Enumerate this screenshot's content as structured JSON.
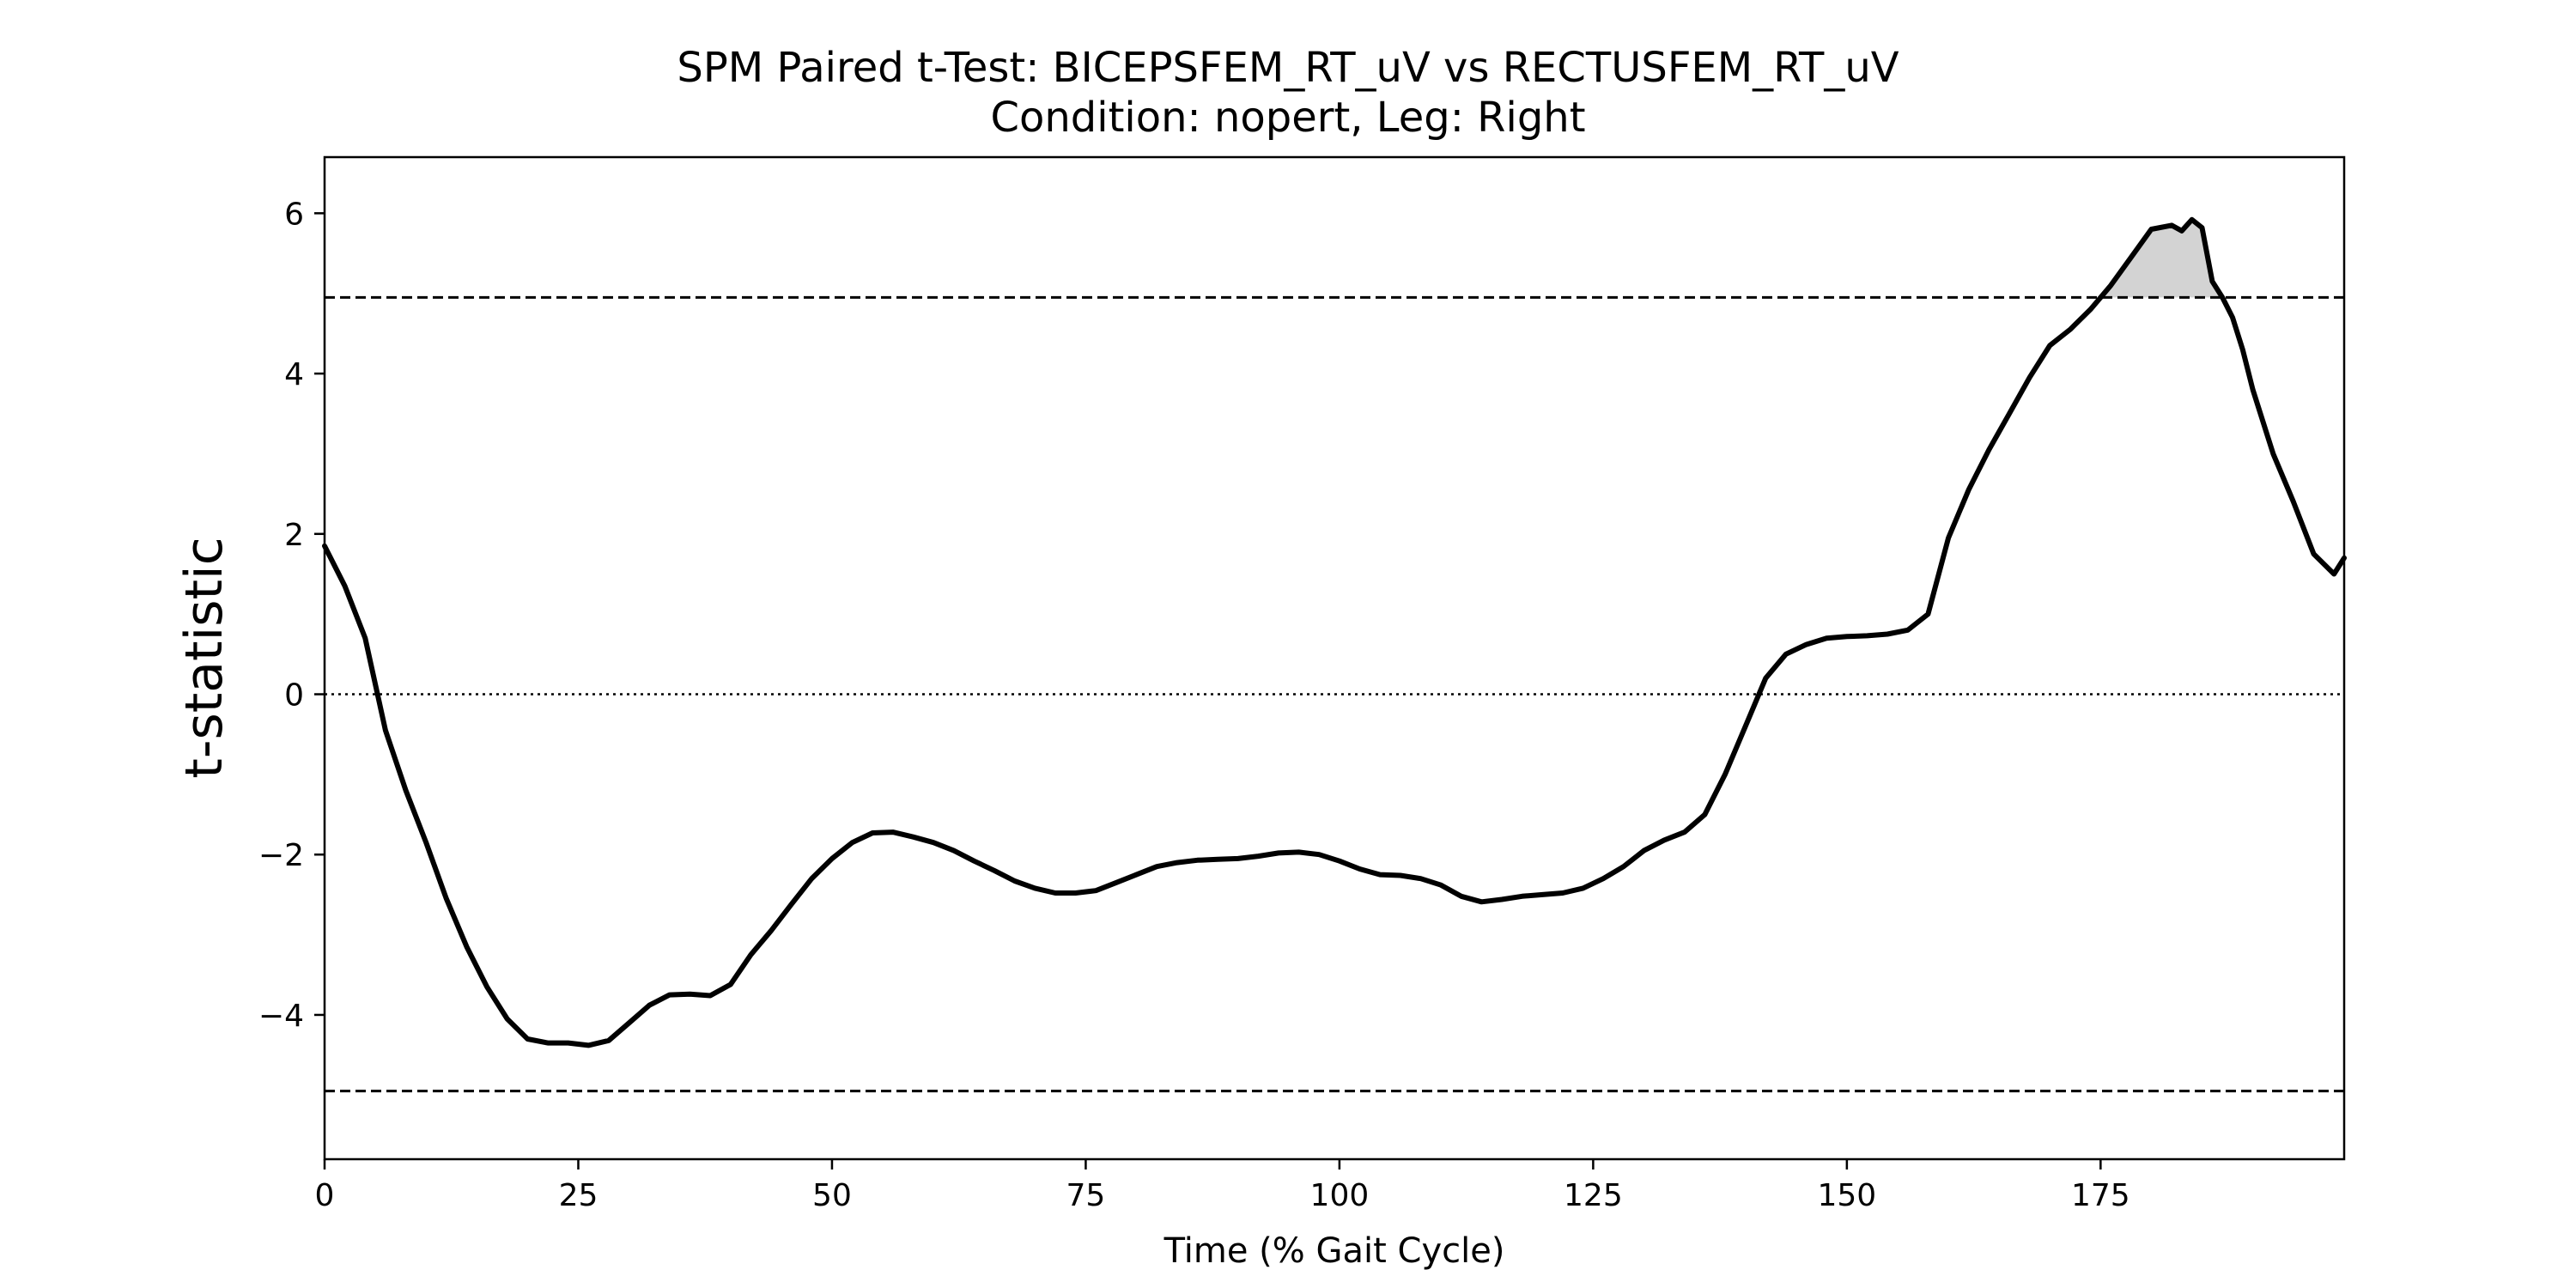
{
  "chart_data": {
    "type": "line",
    "title": "SPM Paired t-Test: BICEPSFEM_RT_uV vs RECTUSFEM_RT_uV",
    "subtitle": "Condition: nopert, Leg: Right",
    "xlabel": "Time (% Gait Cycle)",
    "ylabel": "t-statistic",
    "xlim": [
      0,
      199
    ],
    "ylim": [
      -5.8,
      6.7
    ],
    "x_ticks": [
      0,
      25,
      50,
      75,
      100,
      125,
      150,
      175
    ],
    "x_tick_labels": [
      "0",
      "25",
      "50",
      "75",
      "100",
      "125",
      "150",
      "175"
    ],
    "y_ticks": [
      -4,
      -2,
      0,
      2,
      4,
      6
    ],
    "y_tick_labels": [
      "−4",
      "−2",
      "0",
      "2",
      "4",
      "6"
    ],
    "grid": false,
    "threshold": 4.95,
    "zero_line": 0,
    "series": [
      {
        "x": [
          0,
          2,
          4,
          6,
          8,
          10,
          12,
          14,
          16,
          18,
          20,
          22,
          24,
          26,
          28,
          30,
          32,
          34,
          36,
          38,
          40,
          42,
          44,
          46,
          48,
          50,
          52,
          54,
          56,
          58,
          60,
          62,
          64,
          66,
          68,
          70,
          72,
          74,
          76,
          78,
          80,
          82,
          84,
          86,
          88,
          90,
          92,
          94,
          96,
          98,
          100,
          102,
          104,
          106,
          108,
          110,
          112,
          114,
          116,
          118,
          120,
          122,
          124,
          126,
          128,
          130,
          132,
          134,
          136,
          138,
          140,
          142,
          144,
          146,
          148,
          150,
          152,
          154,
          156,
          158,
          160,
          162,
          164,
          166,
          168,
          170,
          172,
          174,
          176,
          178,
          180,
          182,
          183,
          184,
          185,
          186,
          187,
          188,
          189,
          190,
          192,
          194,
          196,
          198,
          199
        ],
        "y": [
          1.85,
          1.35,
          0.7,
          -0.45,
          -1.2,
          -1.85,
          -2.55,
          -3.15,
          -3.65,
          -4.05,
          -4.3,
          -4.35,
          -4.35,
          -4.38,
          -4.32,
          -4.1,
          -3.88,
          -3.75,
          -3.74,
          -3.76,
          -3.62,
          -3.25,
          -2.95,
          -2.62,
          -2.3,
          -2.05,
          -1.85,
          -1.73,
          -1.72,
          -1.78,
          -1.85,
          -1.95,
          -2.08,
          -2.2,
          -2.33,
          -2.42,
          -2.48,
          -2.48,
          -2.45,
          -2.35,
          -2.25,
          -2.15,
          -2.1,
          -2.07,
          -2.06,
          -2.05,
          -2.02,
          -1.98,
          -1.97,
          -2.0,
          -2.08,
          -2.18,
          -2.25,
          -2.26,
          -2.3,
          -2.38,
          -2.52,
          -2.59,
          -2.56,
          -2.52,
          -2.5,
          -2.48,
          -2.42,
          -2.3,
          -2.15,
          -1.95,
          -1.82,
          -1.72,
          -1.5,
          -1.0,
          -0.4,
          0.2,
          0.5,
          0.62,
          0.7,
          0.72,
          0.73,
          0.75,
          0.8,
          1.0,
          1.95,
          2.55,
          3.05,
          3.5,
          3.95,
          4.35,
          4.55,
          4.8,
          5.1,
          5.45,
          5.8,
          5.85,
          5.78,
          5.92,
          5.82,
          5.15,
          4.95,
          4.7,
          4.3,
          3.8,
          3.0,
          2.4,
          1.75,
          1.5,
          1.7
        ]
      }
    ],
    "colors": {
      "line": "#000000",
      "fill": "#d3d3d3",
      "threshold": "#000000"
    }
  }
}
